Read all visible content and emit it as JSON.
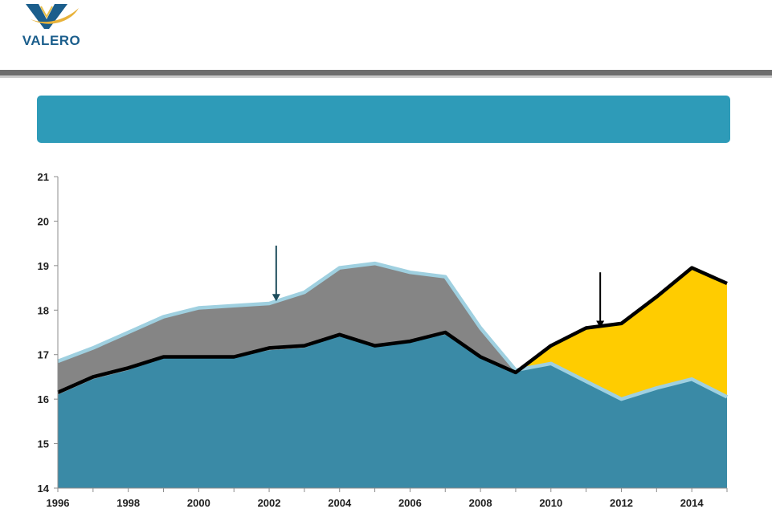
{
  "logo": {
    "text": "VALERO"
  },
  "banner": {
    "text": ""
  },
  "chart_data": {
    "type": "area",
    "title": "",
    "xlabel": "",
    "ylabel": "",
    "xlim": [
      1996,
      2015
    ],
    "ylim": [
      14,
      21
    ],
    "x_ticks": [
      1996,
      1998,
      2000,
      2002,
      2004,
      2006,
      2008,
      2010,
      2012,
      2014
    ],
    "y_ticks": [
      14,
      15,
      16,
      17,
      18,
      19,
      20,
      21
    ],
    "x": [
      1996,
      1997,
      1998,
      1999,
      2000,
      2001,
      2002,
      2003,
      2004,
      2005,
      2006,
      2007,
      2008,
      2009,
      2010,
      2011,
      2012,
      2013,
      2014,
      2015
    ],
    "series": [
      {
        "role": "teal-area-upper-edge",
        "color": "#3a8aa6",
        "values": [
          16.1,
          16.45,
          16.65,
          16.95,
          16.95,
          16.95,
          17.1,
          17.15,
          17.45,
          17.2,
          17.3,
          17.45,
          16.95,
          16.65,
          16.8,
          16.4,
          16.0,
          16.25,
          16.45,
          16.05
        ]
      },
      {
        "role": "light-blue-line",
        "color": "#9fd0e0",
        "values": [
          16.85,
          17.15,
          17.5,
          17.85,
          18.05,
          18.1,
          18.15,
          18.4,
          18.95,
          19.05,
          18.85,
          18.75,
          17.6,
          16.65,
          16.8,
          16.4,
          16.0,
          16.25,
          16.45,
          16.05
        ]
      },
      {
        "role": "black-line",
        "color": "#000000",
        "values": [
          16.15,
          16.5,
          16.7,
          16.95,
          16.95,
          16.95,
          17.15,
          17.2,
          17.45,
          17.2,
          17.3,
          17.5,
          16.95,
          16.6,
          17.2,
          17.6,
          17.7,
          18.3,
          18.95,
          18.6
        ]
      }
    ],
    "fills": [
      {
        "role": "teal-area",
        "color": "#3a8aa6"
      },
      {
        "role": "gray-area",
        "color": "#858585"
      },
      {
        "role": "yellow-area",
        "color": "#ffcc00"
      }
    ],
    "annotations": [
      {
        "type": "arrow",
        "x": 2002.2,
        "y_from": 19.45,
        "y_to": 18.2,
        "color": "#1e4d5c"
      },
      {
        "type": "arrow",
        "x": 2011.4,
        "y_from": 18.85,
        "y_to": 17.6,
        "color": "#000000"
      }
    ]
  }
}
